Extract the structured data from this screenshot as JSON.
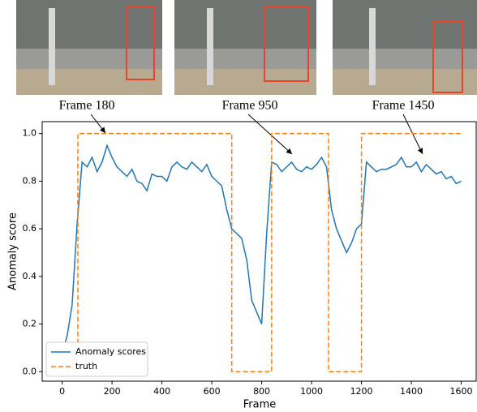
{
  "chart_data": {
    "type": "line",
    "xlabel": "Frame",
    "ylabel": "Anomaly score",
    "annotations": [
      "Frame 180",
      "Frame 950",
      "Frame 1450"
    ],
    "xlim": [
      -80,
      1660
    ],
    "ylim": [
      -0.04,
      1.05
    ],
    "xticks": [
      0,
      200,
      400,
      600,
      800,
      1000,
      1200,
      1400,
      1600
    ],
    "yticks": [
      {
        "value": 0,
        "label": "0.0"
      },
      {
        "value": 0.2,
        "label": "0.2"
      },
      {
        "value": 0.4,
        "label": "0.4"
      },
      {
        "value": 0.6,
        "label": "0.6"
      },
      {
        "value": 0.8,
        "label": "0.8"
      },
      {
        "value": 1,
        "label": "1.0"
      }
    ],
    "legend": "lower left",
    "series": [
      {
        "name": "Anomaly scores",
        "color": "#1f77b4",
        "linestyle": "solid",
        "x": [
          0,
          20,
          40,
          60,
          80,
          100,
          120,
          140,
          160,
          180,
          200,
          220,
          240,
          260,
          280,
          300,
          320,
          340,
          360,
          380,
          400,
          420,
          440,
          460,
          480,
          500,
          520,
          540,
          560,
          580,
          600,
          620,
          640,
          660,
          680,
          700,
          720,
          740,
          760,
          780,
          800,
          820,
          840,
          860,
          880,
          900,
          920,
          940,
          960,
          980,
          1000,
          1020,
          1040,
          1060,
          1080,
          1100,
          1120,
          1140,
          1160,
          1180,
          1200,
          1220,
          1240,
          1260,
          1280,
          1300,
          1320,
          1340,
          1360,
          1380,
          1400,
          1420,
          1440,
          1460,
          1480,
          1500,
          1520,
          1540,
          1560,
          1580,
          1600
        ],
        "values": [
          0.08,
          0.15,
          0.28,
          0.62,
          0.88,
          0.86,
          0.9,
          0.84,
          0.88,
          0.95,
          0.9,
          0.86,
          0.84,
          0.82,
          0.85,
          0.8,
          0.79,
          0.76,
          0.83,
          0.82,
          0.82,
          0.8,
          0.86,
          0.88,
          0.86,
          0.85,
          0.88,
          0.86,
          0.84,
          0.87,
          0.82,
          0.8,
          0.78,
          0.68,
          0.6,
          0.58,
          0.56,
          0.47,
          0.3,
          0.25,
          0.2,
          0.58,
          0.88,
          0.87,
          0.84,
          0.86,
          0.88,
          0.85,
          0.84,
          0.86,
          0.85,
          0.87,
          0.9,
          0.86,
          0.68,
          0.6,
          0.55,
          0.5,
          0.54,
          0.6,
          0.62,
          0.88,
          0.86,
          0.84,
          0.85,
          0.85,
          0.86,
          0.87,
          0.9,
          0.86,
          0.86,
          0.88,
          0.84,
          0.87,
          0.85,
          0.83,
          0.84,
          0.81,
          0.82,
          0.79,
          0.8
        ]
      },
      {
        "name": "truth",
        "color": "#ff7f0e",
        "linestyle": "dashed",
        "x": [
          0,
          63,
          63,
          680,
          680,
          840,
          840,
          1068,
          1068,
          1200,
          1200,
          1600
        ],
        "values": [
          0,
          0,
          1,
          1,
          0,
          0,
          1,
          1,
          0,
          0,
          1,
          1
        ]
      }
    ]
  }
}
